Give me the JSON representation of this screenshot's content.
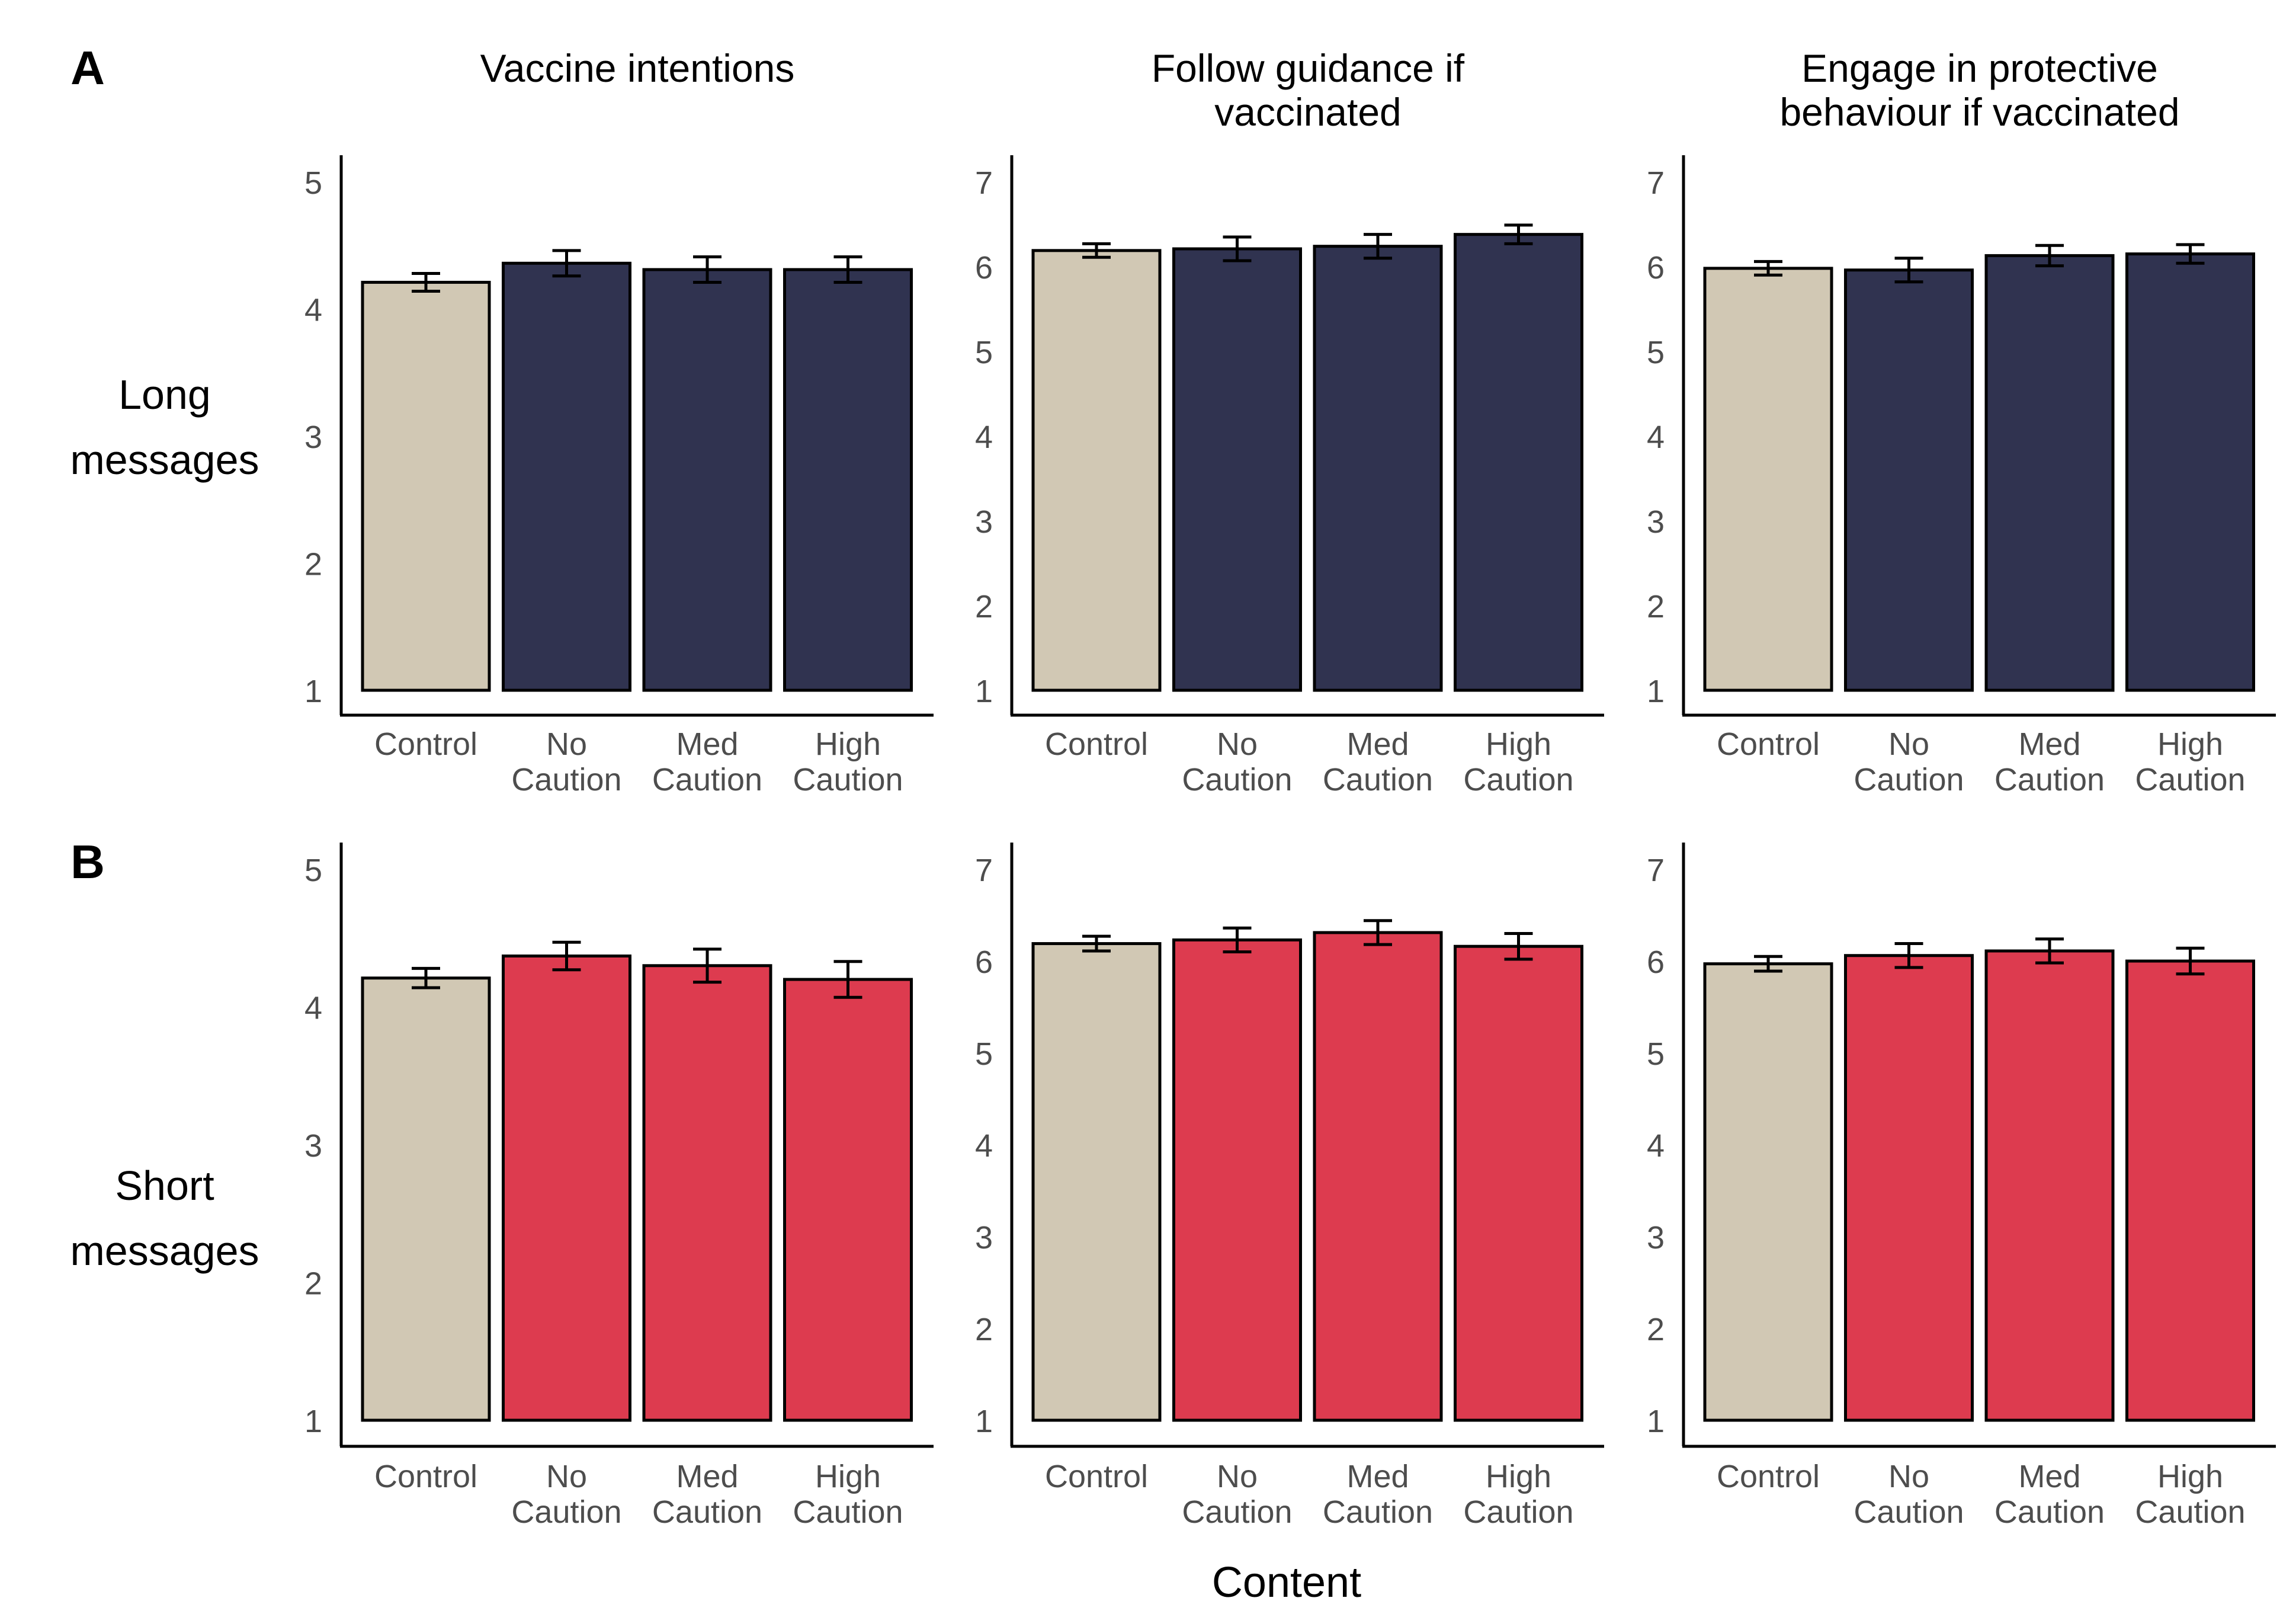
{
  "figure": {
    "panel_labels": [
      "A",
      "B"
    ],
    "row_labels": [
      [
        "Long",
        "messages"
      ],
      [
        "Short",
        "messages"
      ]
    ],
    "column_titles": [
      [
        "Vaccine intentions"
      ],
      [
        "Follow guidance if",
        "vaccinated"
      ],
      [
        "Engage in protective",
        "behaviour if vaccinated"
      ]
    ],
    "xlabel": "Content",
    "colors": {
      "control": "#d1c8b4",
      "long": "#303350",
      "short": "#dd3b4f",
      "outline": "#000000",
      "tick_text": "#4d4d4d",
      "text": "#000000"
    }
  },
  "chart_data": [
    {
      "type": "bar",
      "row": 0,
      "col": 0,
      "series_color": "long",
      "title": "Vaccine intentions",
      "xlabel": "",
      "ylabel": "",
      "categories": [
        [
          "Control"
        ],
        [
          "No",
          "Caution"
        ],
        [
          "Med",
          "Caution"
        ],
        [
          "High",
          "Caution"
        ]
      ],
      "values": [
        4.21,
        4.36,
        4.31,
        4.31
      ],
      "error": [
        0.07,
        0.1,
        0.1,
        0.1
      ],
      "ylim": [
        1,
        5
      ],
      "yticks": [
        "1",
        "2",
        "3",
        "4",
        "5"
      ],
      "grid": false
    },
    {
      "type": "bar",
      "row": 0,
      "col": 1,
      "series_color": "long",
      "title": "Follow guidance if vaccinated",
      "xlabel": "",
      "ylabel": "",
      "categories": [
        [
          "Control"
        ],
        [
          "No",
          "Caution"
        ],
        [
          "Med",
          "Caution"
        ],
        [
          "High",
          "Caution"
        ]
      ],
      "values": [
        6.19,
        6.21,
        6.24,
        6.38
      ],
      "error": [
        0.08,
        0.14,
        0.14,
        0.11
      ],
      "ylim": [
        1,
        7
      ],
      "yticks": [
        "1",
        "2",
        "3",
        "4",
        "5",
        "6",
        "7"
      ],
      "grid": false
    },
    {
      "type": "bar",
      "row": 0,
      "col": 2,
      "series_color": "long",
      "title": "Engage in protective behaviour if vaccinated",
      "xlabel": "",
      "ylabel": "",
      "categories": [
        [
          "Control"
        ],
        [
          "No",
          "Caution"
        ],
        [
          "Med",
          "Caution"
        ],
        [
          "High",
          "Caution"
        ]
      ],
      "values": [
        5.98,
        5.96,
        6.13,
        6.15
      ],
      "error": [
        0.08,
        0.14,
        0.12,
        0.11
      ],
      "ylim": [
        1,
        7
      ],
      "yticks": [
        "1",
        "2",
        "3",
        "4",
        "5",
        "6",
        "7"
      ],
      "grid": false
    },
    {
      "type": "bar",
      "row": 1,
      "col": 0,
      "series_color": "short",
      "title": "Vaccine intentions",
      "xlabel": "Content",
      "ylabel": "",
      "categories": [
        [
          "Control"
        ],
        [
          "No",
          "Caution"
        ],
        [
          "Med",
          "Caution"
        ],
        [
          "High",
          "Caution"
        ]
      ],
      "values": [
        4.21,
        4.37,
        4.3,
        4.2
      ],
      "error": [
        0.07,
        0.1,
        0.12,
        0.13
      ],
      "ylim": [
        1,
        5
      ],
      "yticks": [
        "1",
        "2",
        "3",
        "4",
        "5"
      ],
      "grid": false
    },
    {
      "type": "bar",
      "row": 1,
      "col": 1,
      "series_color": "short",
      "title": "Follow guidance if vaccinated",
      "xlabel": "Content",
      "ylabel": "",
      "categories": [
        [
          "Control"
        ],
        [
          "No",
          "Caution"
        ],
        [
          "Med",
          "Caution"
        ],
        [
          "High",
          "Caution"
        ]
      ],
      "values": [
        6.19,
        6.23,
        6.31,
        6.16
      ],
      "error": [
        0.08,
        0.13,
        0.13,
        0.14
      ],
      "ylim": [
        1,
        7
      ],
      "yticks": [
        "1",
        "2",
        "3",
        "4",
        "5",
        "6",
        "7"
      ],
      "grid": false
    },
    {
      "type": "bar",
      "row": 1,
      "col": 2,
      "series_color": "short",
      "title": "Engage in protective behaviour if vaccinated",
      "xlabel": "Content",
      "ylabel": "",
      "categories": [
        [
          "Control"
        ],
        [
          "No",
          "Caution"
        ],
        [
          "Med",
          "Caution"
        ],
        [
          "High",
          "Caution"
        ]
      ],
      "values": [
        5.97,
        6.06,
        6.11,
        6.0
      ],
      "error": [
        0.08,
        0.13,
        0.13,
        0.14
      ],
      "ylim": [
        1,
        7
      ],
      "yticks": [
        "1",
        "2",
        "3",
        "4",
        "5",
        "6",
        "7"
      ],
      "grid": false
    }
  ]
}
